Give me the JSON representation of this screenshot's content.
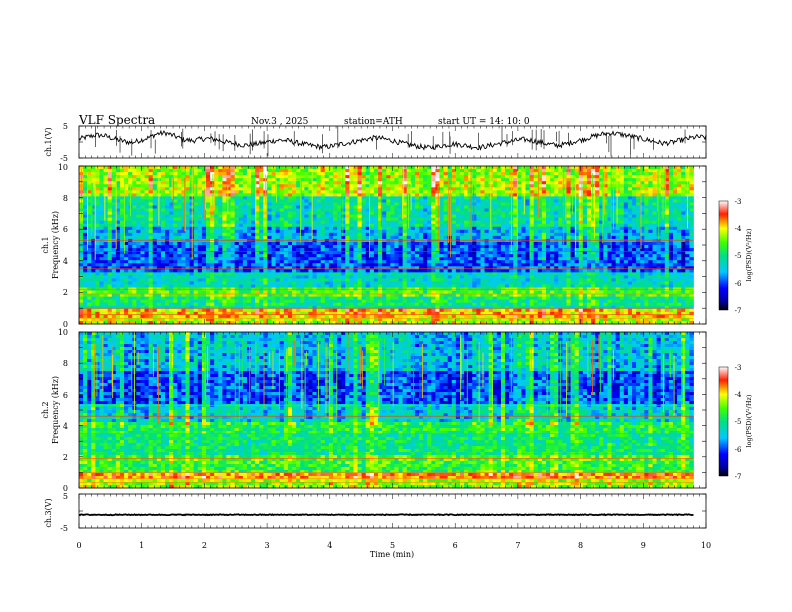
{
  "header": {
    "title": "VLF  Spectra",
    "date": "Nov.3  , 2025",
    "station": "station=ATH",
    "start": "start  UT  =   14: 10: 0"
  },
  "chart_data": [
    {
      "type": "line",
      "id": "ch1-waveform",
      "ylabel": "ch.1(V)",
      "ylim": [
        -5,
        5
      ],
      "yticks": [
        "5",
        "-5"
      ],
      "xlim": [
        0,
        10
      ],
      "description_values_approx": [
        0.9,
        1.6,
        2.2,
        1.9,
        1.0,
        0.3,
        -0.2,
        0.5,
        1.4,
        2.6,
        2.8,
        1.8,
        0.8,
        0.4,
        0.9,
        1.1,
        0.6,
        -0.1,
        -0.6,
        -1.0,
        -0.8,
        -0.3,
        0.2,
        0.6,
        0.4,
        -0.2,
        -0.8,
        -1.2,
        -1.6,
        -1.3,
        -0.7,
        -0.2,
        0.3,
        0.9,
        1.3,
        1.0,
        0.4,
        -0.3,
        -0.9,
        -1.4,
        -1.8,
        -1.5,
        -1.0,
        -0.6,
        -0.9,
        -1.4,
        -1.7,
        -1.2,
        -0.6,
        -0.1,
        0.4,
        0.8,
        0.5,
        -0.2,
        -0.7,
        -1.1,
        -0.6,
        0.2,
        0.9,
        1.7,
        2.4,
        2.8,
        2.5,
        2.0,
        1.4,
        0.8,
        0.2,
        -0.4,
        -0.2,
        0.5,
        1.1,
        1.6,
        1.4
      ]
    },
    {
      "type": "heatmap",
      "id": "ch1-spectrogram",
      "ylabel": "ch.1\nFrequency  (kHz)",
      "ylabel_lines": [
        "ch.1",
        "Frequency  (kHz)"
      ],
      "ylim": [
        0,
        10
      ],
      "yticks": [
        "0",
        "2",
        "4",
        "6",
        "8",
        "10"
      ],
      "xlim": [
        0,
        9.8
      ],
      "colorbar": {
        "label": "log(PSD)(V²/Hz)",
        "range": [
          -7,
          -3
        ],
        "ticks": [
          "-3",
          "-4",
          "-5",
          "-6",
          "-7"
        ]
      },
      "bands_log_psd": [
        {
          "f": [
            0,
            0.3
          ],
          "v": -4.2
        },
        {
          "f": [
            0.3,
            0.9
          ],
          "v": -3.9
        },
        {
          "f": [
            0.9,
            1.2
          ],
          "v": -5.2
        },
        {
          "f": [
            1.2,
            1.8
          ],
          "v": -5.0
        },
        {
          "f": [
            1.8,
            2.3
          ],
          "v": -4.6
        },
        {
          "f": [
            2.3,
            3.2
          ],
          "v": -5.3
        },
        {
          "f": [
            3.2,
            5.2
          ],
          "v": -6.0
        },
        {
          "f": [
            5.2,
            6.2
          ],
          "v": -5.6
        },
        {
          "f": [
            6.2,
            8.0
          ],
          "v": -5.2
        },
        {
          "f": [
            8.0,
            10.0
          ],
          "v": -4.3
        }
      ]
    },
    {
      "type": "heatmap",
      "id": "ch2-spectrogram",
      "ylabel": "ch.2\nFrequency  (kHz)",
      "ylabel_lines": [
        "ch.2",
        "Frequency  (kHz)"
      ],
      "ylim": [
        0,
        10
      ],
      "yticks": [
        "0",
        "2",
        "4",
        "6",
        "8",
        "10"
      ],
      "xlim": [
        0,
        9.8
      ],
      "colorbar": {
        "label": "log(PSD)(V²/Hz)",
        "range": [
          -7,
          -3
        ],
        "ticks": [
          "-3",
          "-4",
          "-5",
          "-6",
          "-7"
        ]
      },
      "bands_log_psd": [
        {
          "f": [
            0,
            0.5
          ],
          "v": -4.3
        },
        {
          "f": [
            0.5,
            0.9
          ],
          "v": -3.7
        },
        {
          "f": [
            0.9,
            1.6
          ],
          "v": -4.7
        },
        {
          "f": [
            1.6,
            2.2
          ],
          "v": -4.6
        },
        {
          "f": [
            2.2,
            3.4
          ],
          "v": -5.0
        },
        {
          "f": [
            3.4,
            4.2
          ],
          "v": -4.8
        },
        {
          "f": [
            4.2,
            5.4
          ],
          "v": -5.4
        },
        {
          "f": [
            5.4,
            7.5
          ],
          "v": -6.0
        },
        {
          "f": [
            7.5,
            10.0
          ],
          "v": -5.5
        }
      ]
    },
    {
      "type": "line",
      "id": "ch3-waveform",
      "ylabel": "ch.3(V)",
      "ylim": [
        -5,
        5
      ],
      "yticks": [
        "5",
        "-5"
      ],
      "xlim": [
        0,
        9.8
      ],
      "description_values_approx": [
        -1.1,
        -1.1,
        -1.1,
        -1.1,
        -1.1,
        -1.1,
        -1.1,
        -1.1,
        -1.1,
        -1.1
      ]
    }
  ],
  "xaxis": {
    "label": "Time  (min)",
    "ticks": [
      "0",
      "1",
      "2",
      "3",
      "4",
      "5",
      "6",
      "7",
      "8",
      "9",
      "10"
    ]
  }
}
